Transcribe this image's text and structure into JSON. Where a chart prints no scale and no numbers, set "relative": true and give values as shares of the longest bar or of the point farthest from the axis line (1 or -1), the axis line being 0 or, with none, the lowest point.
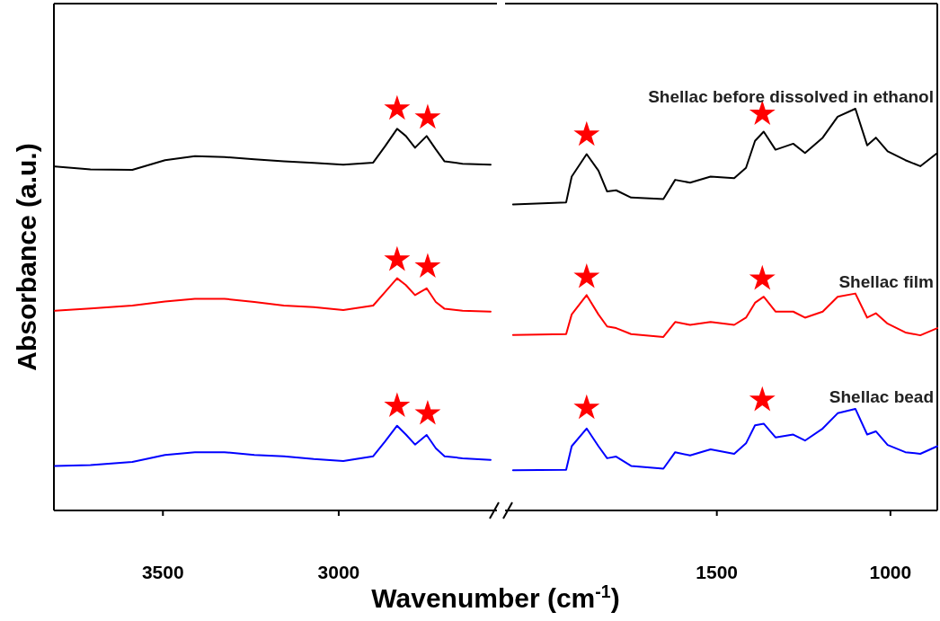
{
  "chart_data": [
    {
      "type": "line",
      "relative": true,
      "xlabel": "Wavenumber (cm$^{-1}$)",
      "ylabel": "Absorbance (a.u.)",
      "xlim": [
        3810,
        2550
      ],
      "xticks": [
        3500,
        3000
      ],
      "tick_labels": "x",
      "x": [
        3807,
        3706,
        3587,
        3494,
        3409,
        3325,
        3240,
        3156,
        3071,
        2987,
        2902,
        2868,
        2834,
        2809,
        2783,
        2750,
        2724,
        2699,
        2648,
        2568
      ],
      "series": [
        {
          "color": "#000000",
          "values": [
            0.856,
            0.849,
            0.848,
            0.872,
            0.882,
            0.88,
            0.874,
            0.869,
            0.865,
            0.861,
            0.866,
            0.907,
            0.95,
            0.932,
            0.903,
            0.932,
            0.899,
            0.869,
            0.863,
            0.861
          ]
        },
        {
          "color": "#ff0000",
          "values": [
            0.497,
            0.503,
            0.51,
            0.52,
            0.527,
            0.527,
            0.519,
            0.51,
            0.506,
            0.499,
            0.51,
            0.544,
            0.578,
            0.561,
            0.536,
            0.553,
            0.519,
            0.502,
            0.497,
            0.495
          ]
        },
        {
          "color": "#0000ff",
          "values": [
            0.111,
            0.113,
            0.121,
            0.138,
            0.145,
            0.145,
            0.138,
            0.135,
            0.128,
            0.123,
            0.135,
            0.172,
            0.211,
            0.189,
            0.164,
            0.188,
            0.155,
            0.135,
            0.13,
            0.126
          ]
        },
        {
          "type": "scatter",
          "marker": "star",
          "color": "#ff0000",
          "x": [
            2834,
            2747,
            2834,
            2747,
            2834,
            2747
          ],
          "values": [
            1,
            0.978,
            0.624,
            0.607,
            0.26,
            0.241
          ]
        }
      ]
    },
    {
      "type": "line",
      "relative": true,
      "xlim": [
        2110,
        865
      ],
      "xticks": [
        1500,
        1000
      ],
      "tick_labels": "x",
      "x": [
        2087,
        1934,
        1918,
        1875,
        1841,
        1816,
        1790,
        1747,
        1654,
        1620,
        1577,
        1518,
        1450,
        1416,
        1390,
        1365,
        1331,
        1280,
        1246,
        1195,
        1152,
        1101,
        1067,
        1042,
        1008,
        957,
        914,
        865
      ],
      "series": [
        {
          "name": "Shellac before dissolved in ethanol",
          "color": "#000000",
          "values": [
            0.762,
            0.767,
            0.831,
            0.887,
            0.846,
            0.794,
            0.797,
            0.779,
            0.775,
            0.823,
            0.816,
            0.831,
            0.827,
            0.853,
            0.92,
            0.943,
            0.898,
            0.913,
            0.89,
            0.928,
            0.98,
            1,
            0.909,
            0.928,
            0.894,
            0.872,
            0.857,
            0.89
          ]
        },
        {
          "name": "Shellac film",
          "color": "#ff0000",
          "values": [
            0.437,
            0.439,
            0.488,
            0.536,
            0.488,
            0.458,
            0.454,
            0.439,
            0.432,
            0.469,
            0.462,
            0.469,
            0.462,
            0.48,
            0.517,
            0.532,
            0.495,
            0.495,
            0.48,
            0.495,
            0.532,
            0.54,
            0.48,
            0.491,
            0.465,
            0.443,
            0.436,
            0.454
          ]
        },
        {
          "name": "Shellac bead",
          "color": "#0000ff",
          "values": [
            0.1,
            0.101,
            0.16,
            0.204,
            0.16,
            0.13,
            0.134,
            0.111,
            0.104,
            0.145,
            0.137,
            0.152,
            0.141,
            0.167,
            0.212,
            0.216,
            0.182,
            0.189,
            0.174,
            0.204,
            0.242,
            0.253,
            0.189,
            0.197,
            0.163,
            0.145,
            0.141,
            0.16
          ]
        },
        {
          "type": "scatter",
          "marker": "star",
          "color": "#ff0000",
          "x": [
            1875,
            1369,
            1875,
            1369,
            1875,
            1369
          ],
          "values": [
            0.935,
            0.987,
            0.581,
            0.577,
            0.255,
            0.275
          ]
        }
      ]
    }
  ]
}
